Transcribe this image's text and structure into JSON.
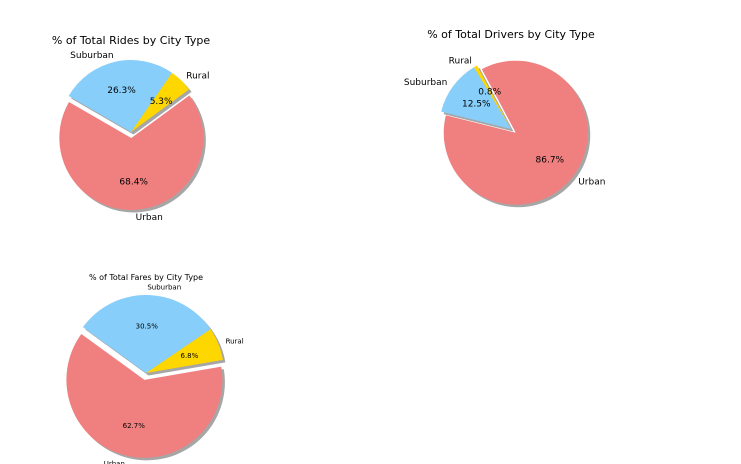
{
  "chart_data": [
    {
      "type": "pie",
      "title": "% of Total Rides by City Type",
      "slices": [
        {
          "label": "Urban",
          "value": 68.4,
          "pct_label": "68.4%",
          "color": "#F08080"
        },
        {
          "label": "Rural",
          "value": 5.3,
          "pct_label": "5.3%",
          "color": "#FFD700"
        },
        {
          "label": "Suburban",
          "value": 26.3,
          "pct_label": "26.3%",
          "color": "#87CEFA"
        }
      ],
      "explode": [
        "Urban"
      ],
      "shadow": true,
      "start_angle_deg": 150
    },
    {
      "type": "pie",
      "title": "% of Total Drivers by City Type",
      "slices": [
        {
          "label": "Urban",
          "value": 86.7,
          "pct_label": "86.7%",
          "color": "#F08080"
        },
        {
          "label": "Rural",
          "value": 0.8,
          "pct_label": "0.8%",
          "color": "#FFD700"
        },
        {
          "label": "Suburban",
          "value": 12.5,
          "pct_label": "12.5%",
          "color": "#87CEFA"
        }
      ],
      "explode": [
        "Urban"
      ],
      "shadow": true,
      "start_angle_deg": 166
    },
    {
      "type": "pie",
      "title": "% of Total Fares by City Type",
      "slices": [
        {
          "label": "Urban",
          "value": 62.7,
          "pct_label": "62.7%",
          "color": "#F08080"
        },
        {
          "label": "Rural",
          "value": 6.8,
          "pct_label": "6.8%",
          "color": "#FFD700"
        },
        {
          "label": "Suburban",
          "value": 30.5,
          "pct_label": "30.5%",
          "color": "#87CEFA"
        }
      ],
      "explode": [
        "Urban"
      ],
      "shadow": true,
      "start_angle_deg": 144
    }
  ]
}
